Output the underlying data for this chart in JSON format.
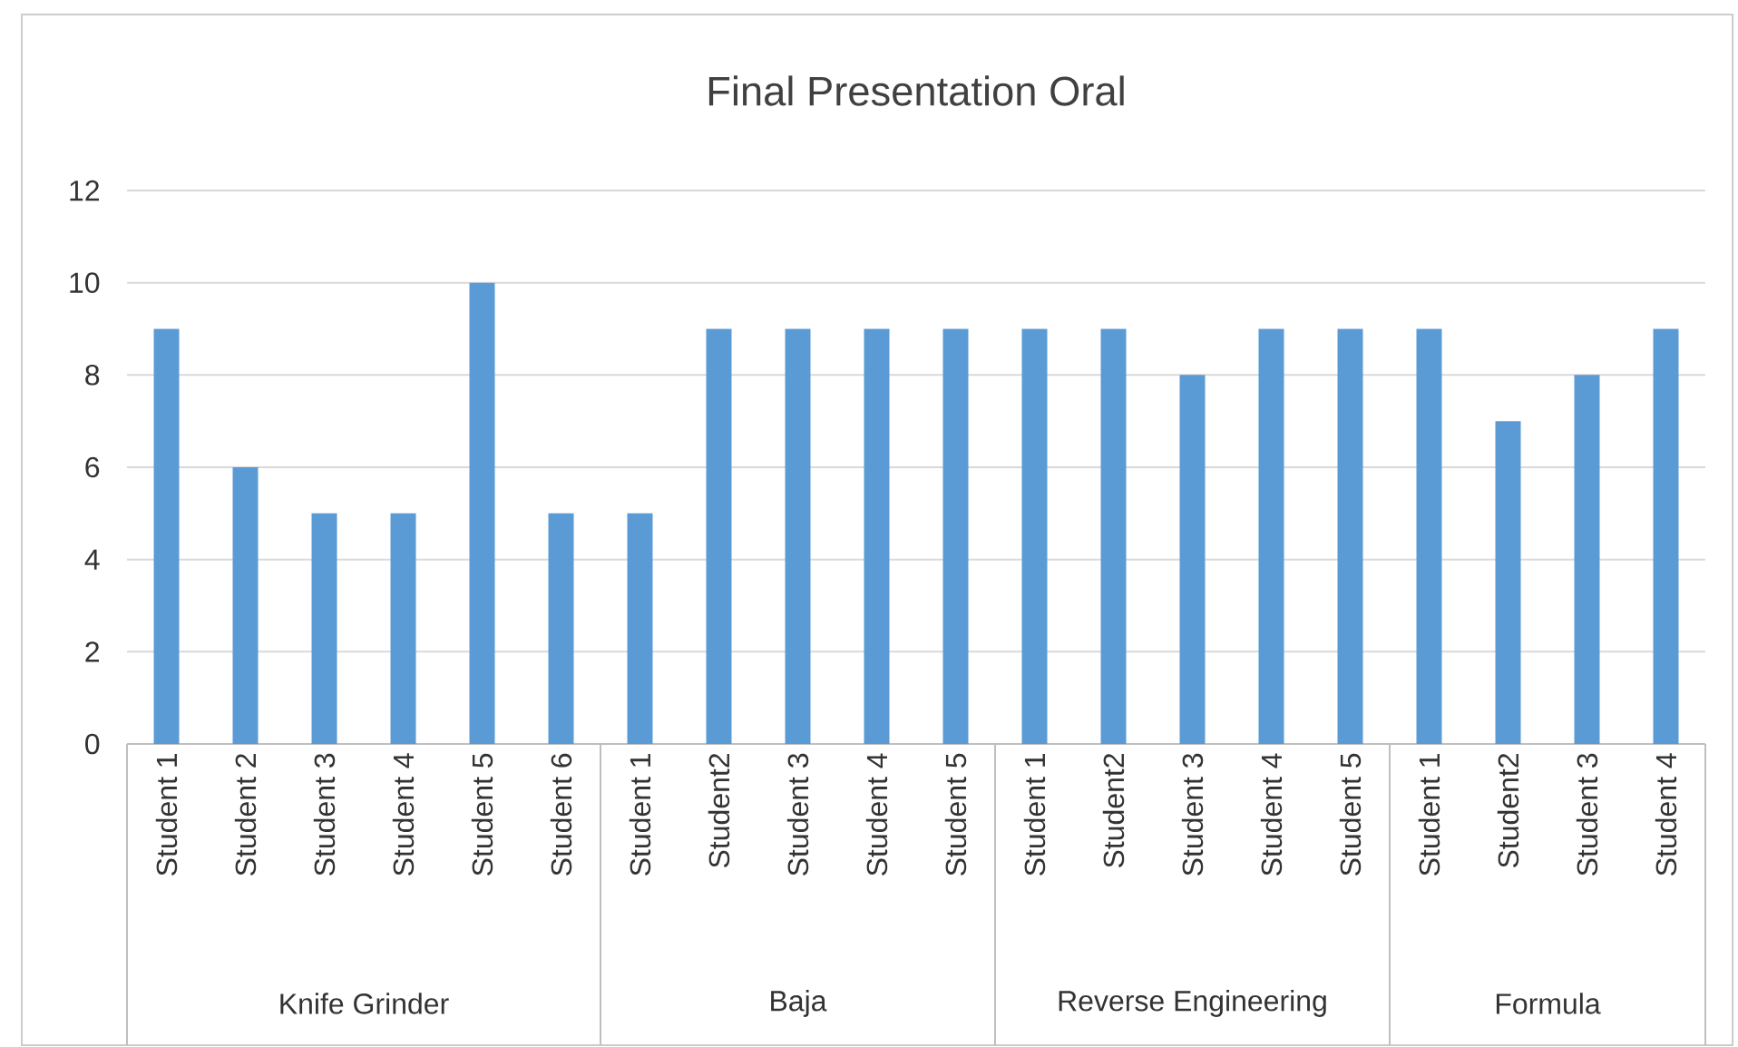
{
  "chart_data": [
    {
      "type": "bar",
      "xlabel": "Knife Grinder",
      "categories": [
        "Student 1",
        "Student 2",
        "Student 3",
        "Student 4",
        "Student 5",
        "Student 6"
      ],
      "values": [
        9,
        6,
        5,
        5,
        10,
        5
      ],
      "color": "#5b9bd5",
      "ylim": [
        0,
        12
      ],
      "yticks": [
        0,
        2,
        4,
        6,
        8,
        10,
        12
      ],
      "grid": "y"
    },
    {
      "type": "bar",
      "title": "Final Presentation Oral",
      "xlabel": "Baja",
      "categories": [
        "Student 1",
        "Student2",
        "Student 3",
        "Student 4",
        "Student 5"
      ],
      "values": [
        5,
        9,
        9,
        9,
        9
      ],
      "color": "#5b9bd5",
      "ylim": [
        0,
        12
      ],
      "yticks": [
        0,
        2,
        4,
        6,
        8,
        10,
        12
      ],
      "grid": "y",
      "tick_labels": "x"
    },
    {
      "type": "bar",
      "xlabel": "Reverse Engineering",
      "categories": [
        "Student 1",
        "Student2",
        "Student 3",
        "Student 4",
        "Student 5"
      ],
      "values": [
        9,
        9,
        8,
        9,
        9
      ],
      "color": "#5b9bd5",
      "ylim": [
        0,
        12
      ],
      "yticks": [
        0,
        2,
        4,
        6,
        8,
        10,
        12
      ],
      "grid": "y",
      "tick_labels": "x"
    },
    {
      "type": "bar",
      "xlabel": "Formula",
      "categories": [
        "Student 1",
        "Student2",
        "Student 3",
        "Student 4"
      ],
      "values": [
        9,
        7,
        8,
        9
      ],
      "color": "#5b9bd5",
      "ylim": [
        0,
        12
      ],
      "yticks": [
        0,
        2,
        4,
        6,
        8,
        10,
        12
      ],
      "grid": "y",
      "tick_labels": "x"
    }
  ]
}
